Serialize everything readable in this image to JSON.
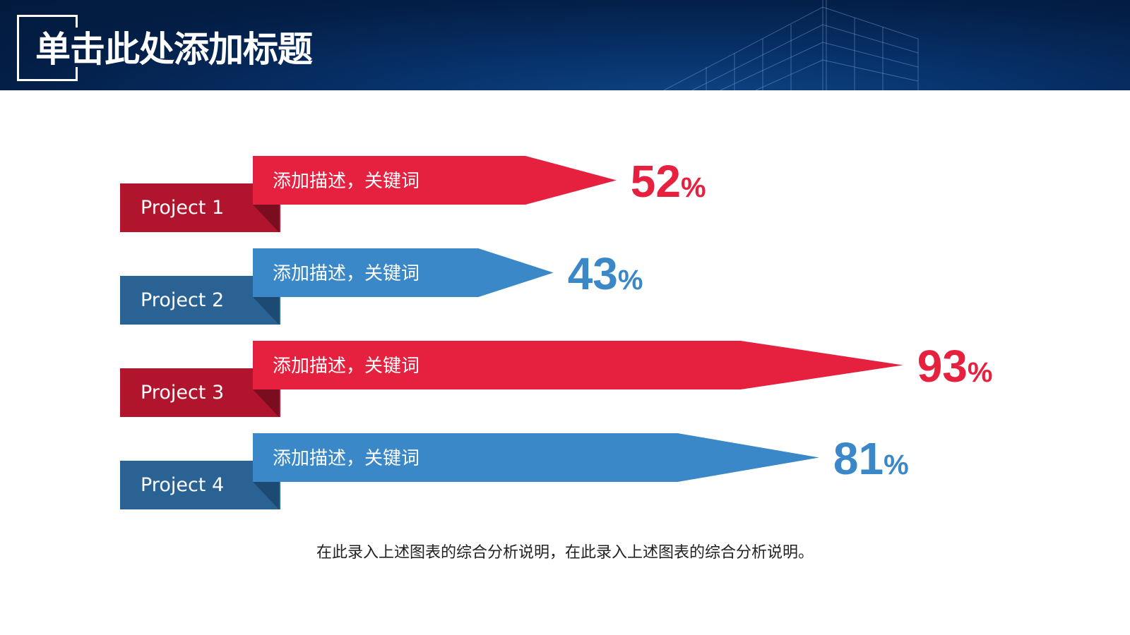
{
  "header": {
    "title": "单击此处添加标题"
  },
  "chart_data": {
    "type": "bar",
    "orientation": "horizontal",
    "categories": [
      "Project 1",
      "Project 2",
      "Project 3",
      "Project 4"
    ],
    "values": [
      52,
      43,
      93,
      81
    ],
    "unit": "%",
    "descriptions": [
      "添加描述，关键词",
      "添加描述，关键词",
      "添加描述，关键词",
      "添加描述，关键词"
    ],
    "colors": [
      "#e5213f",
      "#3a88c8",
      "#e5213f",
      "#3a88c8"
    ],
    "label_colors": [
      "#b0152d",
      "#2a6294",
      "#b0152d",
      "#2a6294"
    ],
    "fold_colors": [
      "#7a0d1f",
      "#1d4a72",
      "#7a0d1f",
      "#1d4a72"
    ],
    "xlim": [
      0,
      100
    ],
    "grid": false
  },
  "caption": "在此录入上述图表的综合分析说明，在此录入上述图表的综合分析说明。"
}
